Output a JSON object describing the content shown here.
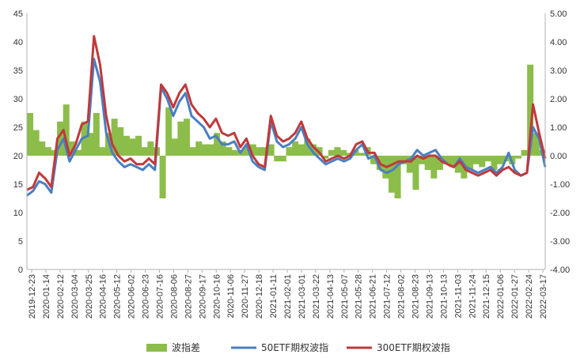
{
  "chart_data": {
    "type": "area+line",
    "title": "",
    "left_axis": {
      "ylim": [
        0,
        45
      ],
      "ticks": [
        "0",
        "5",
        "10",
        "15",
        "20",
        "25",
        "30",
        "35",
        "40",
        "45"
      ]
    },
    "right_axis": {
      "ylim": [
        -4,
        5
      ],
      "ticks": [
        "-4.00",
        "-3.00",
        "-2.00",
        "-1.00",
        "0.00",
        "1.00",
        "2.00",
        "3.00",
        "4.00",
        "5.00"
      ]
    },
    "x_tick_labels": [
      "2019-12-23",
      "2020-01-14",
      "2020-02-12",
      "2020-03-04",
      "2020-03-25",
      "2020-04-16",
      "2020-05-12",
      "2020-06-02",
      "2020-06-23",
      "2020-07-16",
      "2020-08-06",
      "2020-08-27",
      "2020-09-17",
      "2020-10-16",
      "2020-11-06",
      "2020-11-27",
      "2020-12-18",
      "2021-01-11",
      "2021-02-01",
      "2021-03-01",
      "2021-03-22",
      "2021-04-13",
      "2021-05-07",
      "2021-05-28",
      "2021-06-21",
      "2021-07-12",
      "2021-08-02",
      "2021-08-23",
      "2021-09-13",
      "2021-10-13",
      "2021-11-03",
      "2021-11-24",
      "2021-12-15",
      "2022-01-06",
      "2022-01-27",
      "2022-02-24",
      "2022-03-17"
    ],
    "grid": false,
    "legend_position": "bottom",
    "colors": {
      "spread": "#8cbd4a",
      "etf50": "#4a7fc1",
      "etf300": "#c0393b"
    },
    "series": [
      {
        "name": "波指差",
        "axis": "right",
        "kind": "area",
        "values": [
          1.5,
          0.9,
          0.5,
          0.3,
          0.2,
          1.2,
          1.8,
          0.5,
          0.2,
          1.2,
          0.8,
          1.5,
          0.3,
          0.8,
          1.3,
          1.0,
          0.7,
          0.6,
          0.7,
          0.3,
          0.5,
          0.3,
          -1.5,
          1.7,
          0.6,
          1.2,
          1.3,
          0.3,
          0.5,
          0.4,
          0.4,
          0.8,
          0.5,
          0.3,
          0.2,
          0.2,
          0.3,
          0.4,
          0.3,
          0.3,
          0.4,
          -0.2,
          -0.2,
          0.3,
          0.5,
          0.4,
          0.6,
          0.4,
          0.3,
          -0.1,
          0.2,
          0.3,
          0.2,
          0.1,
          0.2,
          0.1,
          0.3,
          -0.3,
          -0.5,
          -0.8,
          -1.3,
          -1.5,
          -0.3,
          -0.6,
          -1.2,
          -0.3,
          -0.5,
          -0.8,
          -0.5,
          -0.3,
          -0.4,
          -0.6,
          -0.8,
          -0.5,
          -0.3,
          -0.4,
          -0.2,
          -0.5,
          -0.3,
          -0.2,
          -0.3,
          -0.1,
          0.2,
          3.2,
          0.8,
          0.2
        ]
      },
      {
        "name": "50ETF期权波指",
        "axis": "left",
        "kind": "line",
        "values": [
          13.0,
          13.8,
          15.5,
          15.0,
          13.5,
          21.0,
          23.0,
          19.0,
          21.0,
          23.0,
          23.5,
          37.0,
          33.0,
          24.0,
          20.5,
          19.0,
          18.0,
          18.5,
          18.0,
          17.5,
          18.5,
          17.5,
          32.0,
          30.0,
          27.0,
          29.5,
          31.0,
          27.0,
          26.0,
          25.0,
          23.0,
          23.5,
          22.0,
          22.0,
          22.5,
          20.5,
          22.0,
          19.0,
          18.0,
          17.5,
          26.0,
          22.5,
          21.5,
          22.0,
          23.0,
          25.0,
          22.0,
          20.5,
          19.5,
          18.5,
          19.0,
          19.5,
          19.0,
          19.5,
          21.0,
          22.0,
          19.5,
          20.0,
          17.5,
          17.0,
          17.5,
          18.5,
          19.0,
          19.5,
          21.0,
          20.0,
          20.5,
          21.0,
          19.5,
          18.5,
          18.0,
          19.5,
          18.0,
          17.5,
          17.0,
          17.5,
          18.0,
          17.0,
          18.0,
          20.5,
          17.5,
          16.5,
          17.0,
          25.0,
          23.0,
          18.0
        ]
      },
      {
        "name": "300ETF期权波指",
        "axis": "left",
        "kind": "line",
        "values": [
          14.0,
          14.5,
          17.0,
          16.0,
          14.5,
          23.0,
          24.5,
          20.0,
          22.0,
          25.5,
          26.0,
          41.0,
          36.0,
          27.0,
          22.0,
          20.0,
          19.0,
          19.5,
          18.5,
          18.5,
          19.5,
          18.5,
          32.5,
          31.0,
          28.5,
          31.0,
          32.5,
          29.0,
          27.5,
          26.5,
          25.0,
          26.5,
          24.0,
          23.5,
          24.0,
          21.5,
          23.0,
          20.0,
          18.5,
          18.0,
          27.0,
          23.5,
          22.5,
          23.0,
          24.0,
          26.0,
          23.0,
          21.5,
          20.5,
          19.0,
          19.5,
          20.0,
          19.5,
          20.0,
          22.0,
          22.5,
          20.5,
          20.5,
          18.5,
          18.0,
          18.5,
          19.0,
          19.0,
          19.0,
          20.0,
          19.5,
          20.0,
          20.0,
          19.0,
          18.5,
          18.0,
          19.0,
          17.5,
          17.0,
          16.5,
          17.0,
          17.5,
          16.5,
          17.5,
          18.0,
          17.0,
          16.5,
          17.0,
          29.0,
          24.0,
          19.5
        ]
      }
    ]
  }
}
